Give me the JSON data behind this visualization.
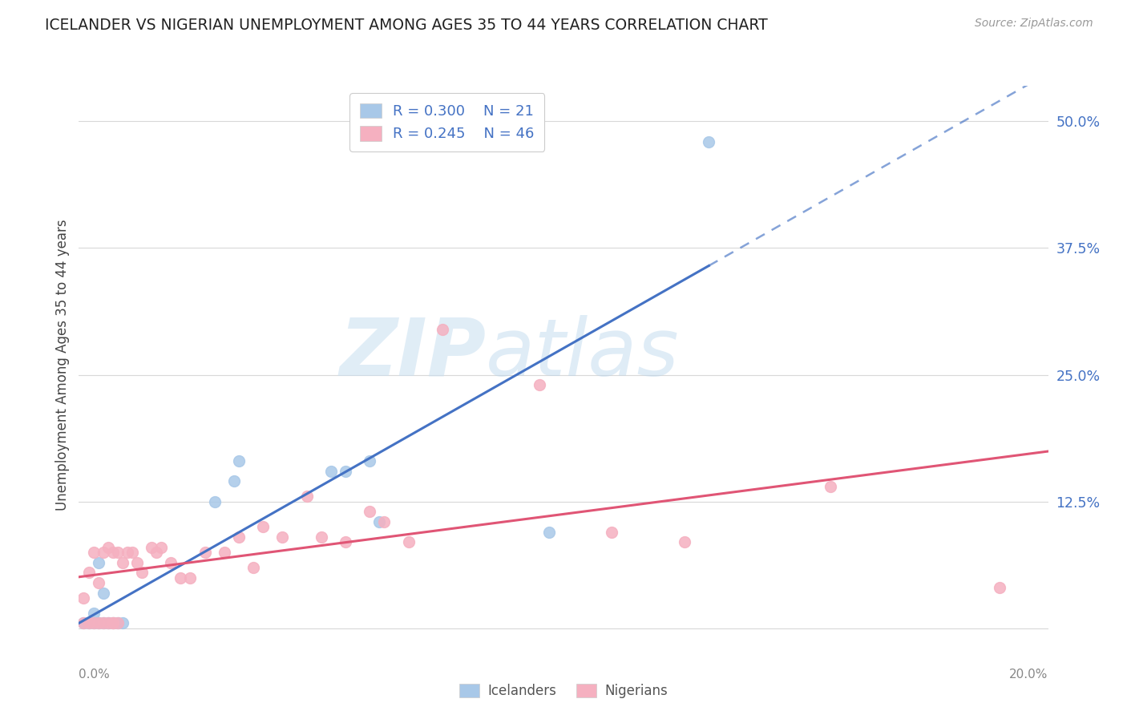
{
  "title": "ICELANDER VS NIGERIAN UNEMPLOYMENT AMONG AGES 35 TO 44 YEARS CORRELATION CHART",
  "source": "Source: ZipAtlas.com",
  "ylabel": "Unemployment Among Ages 35 to 44 years",
  "xlim": [
    0.0,
    0.2
  ],
  "ylim": [
    -0.015,
    0.535
  ],
  "yticks": [
    0.0,
    0.125,
    0.25,
    0.375,
    0.5
  ],
  "ytick_labels": [
    "",
    "12.5%",
    "25.0%",
    "37.5%",
    "50.0%"
  ],
  "xtick_labels": [
    "0.0%",
    "",
    "",
    "",
    "",
    "",
    "",
    "",
    "",
    "20.0%"
  ],
  "icelander_color": "#a8c8e8",
  "nigerian_color": "#f5b0c0",
  "icelander_line_color": "#4472c4",
  "nigerian_line_color": "#e05575",
  "icelander_R": 0.3,
  "icelander_N": 21,
  "nigerian_R": 0.245,
  "nigerian_N": 46,
  "watermark_text": "ZIPatlas",
  "background_color": "#ffffff",
  "grid_color": "#d8d8d8",
  "icelander_x": [
    0.001,
    0.002,
    0.003,
    0.003,
    0.004,
    0.004,
    0.005,
    0.005,
    0.006,
    0.007,
    0.008,
    0.009,
    0.028,
    0.032,
    0.033,
    0.052,
    0.055,
    0.06,
    0.062,
    0.097,
    0.13
  ],
  "icelander_y": [
    0.005,
    0.005,
    0.005,
    0.015,
    0.005,
    0.065,
    0.005,
    0.035,
    0.005,
    0.005,
    0.005,
    0.005,
    0.125,
    0.145,
    0.165,
    0.155,
    0.155,
    0.165,
    0.105,
    0.095,
    0.48
  ],
  "nigerian_x": [
    0.001,
    0.001,
    0.002,
    0.002,
    0.003,
    0.003,
    0.004,
    0.004,
    0.005,
    0.005,
    0.006,
    0.006,
    0.007,
    0.007,
    0.007,
    0.008,
    0.008,
    0.009,
    0.01,
    0.011,
    0.012,
    0.013,
    0.015,
    0.016,
    0.017,
    0.019,
    0.021,
    0.023,
    0.026,
    0.03,
    0.033,
    0.036,
    0.038,
    0.042,
    0.047,
    0.05,
    0.055,
    0.06,
    0.063,
    0.068,
    0.075,
    0.095,
    0.11,
    0.125,
    0.155,
    0.19
  ],
  "nigerian_y": [
    0.005,
    0.03,
    0.005,
    0.055,
    0.005,
    0.075,
    0.005,
    0.045,
    0.005,
    0.075,
    0.005,
    0.08,
    0.005,
    0.005,
    0.075,
    0.005,
    0.075,
    0.065,
    0.075,
    0.075,
    0.065,
    0.055,
    0.08,
    0.075,
    0.08,
    0.065,
    0.05,
    0.05,
    0.075,
    0.075,
    0.09,
    0.06,
    0.1,
    0.09,
    0.13,
    0.09,
    0.085,
    0.115,
    0.105,
    0.085,
    0.295,
    0.24,
    0.095,
    0.085,
    0.14,
    0.04
  ]
}
